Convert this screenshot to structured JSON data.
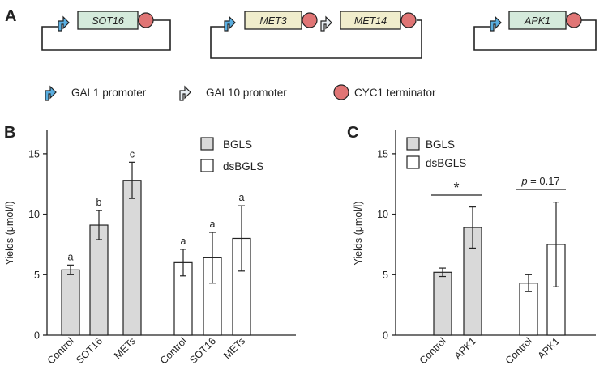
{
  "panels": {
    "a": "A",
    "b": "B",
    "c": "C"
  },
  "constructs": [
    {
      "genes": [
        "SOT16"
      ],
      "promoters": [
        "GAL1"
      ]
    },
    {
      "genes": [
        "MET3",
        "MET14"
      ],
      "promoters": [
        "GAL1",
        "GAL10"
      ]
    },
    {
      "genes": [
        "APK1"
      ],
      "promoters": [
        "GAL1"
      ]
    }
  ],
  "construct_legend": {
    "gal1": "GAL1 promoter",
    "gal10": "GAL10 promoter",
    "cyc1": "CYC1 terminator"
  },
  "colors": {
    "gal1_promoter": "#5aaee0",
    "gal10_promoter": "#e8eef4",
    "terminator": "#e07575",
    "sot16_gene": "#d4eadb",
    "met_gene": "#f0edcc",
    "apk1_gene": "#d4eadb",
    "bgls_bar": "#d9d9d9",
    "dsbgls_bar": "#ffffff"
  },
  "chart_data": [
    {
      "type": "bar",
      "panel": "B",
      "ylabel": "Yields (μmol/l)",
      "ylim": [
        0,
        17
      ],
      "yticks": [
        0,
        5,
        10,
        15
      ],
      "legend_position": "top-right",
      "series": [
        {
          "name": "BGLS",
          "categories": [
            "Control",
            "SOT16",
            "METs"
          ],
          "values": [
            5.4,
            9.1,
            12.8
          ],
          "errors": [
            0.4,
            1.2,
            1.5
          ],
          "letters": [
            "a",
            "b",
            "c"
          ]
        },
        {
          "name": "dsBGLS",
          "categories": [
            "Control",
            "SOT16",
            "METs"
          ],
          "values": [
            6.0,
            6.4,
            8.0
          ],
          "errors": [
            1.1,
            2.1,
            2.7
          ],
          "letters": [
            "a",
            "a",
            "a"
          ]
        }
      ]
    },
    {
      "type": "bar",
      "panel": "C",
      "ylabel": "Yields (μmol/l)",
      "ylim": [
        0,
        17
      ],
      "yticks": [
        0,
        5,
        10,
        15
      ],
      "legend_position": "top-left",
      "series": [
        {
          "name": "BGLS",
          "categories": [
            "Control",
            "APK1"
          ],
          "values": [
            5.2,
            8.9
          ],
          "errors": [
            0.35,
            1.7
          ]
        },
        {
          "name": "dsBGLS",
          "categories": [
            "Control",
            "APK1"
          ],
          "values": [
            4.3,
            7.5
          ],
          "errors": [
            0.7,
            3.5
          ]
        }
      ],
      "annotations": [
        {
          "group": "BGLS",
          "text": "*"
        },
        {
          "group": "dsBGLS",
          "text": "p = 0.17",
          "italic_part": "p"
        }
      ]
    }
  ]
}
